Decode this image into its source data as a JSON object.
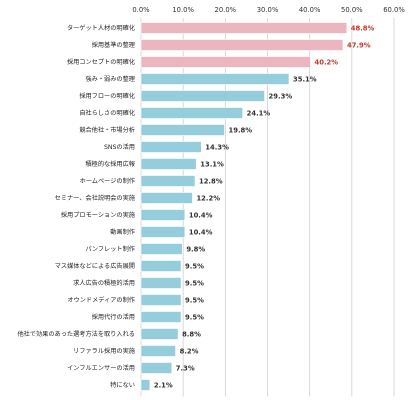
{
  "chart_data": {
    "type": "bar",
    "orientation": "horizontal",
    "title": "",
    "xlabel": "",
    "ylabel": "",
    "xlim": [
      0,
      60
    ],
    "x_tick_labels": [
      "0.0%",
      "10.0%",
      "20.0%",
      "30.0%",
      "40.0%",
      "50.0%",
      "60.0%"
    ],
    "x_ticks": [
      0,
      10,
      20,
      30,
      40,
      50,
      60
    ],
    "x_axis_position": "top",
    "grid": true,
    "legend": "none",
    "categories": [
      "ターゲット人材の明確化",
      "採用基準の整理",
      "採用コンセプトの明確化",
      "強み・弱みの整理",
      "採用フローの明確化",
      "自社らしさの明確化",
      "競合他社・市場分析",
      "SNSの活用",
      "積極的な採用広報",
      "ホームページの制作",
      "セミナー、会社説明会の実施",
      "採用プロモーションの実施",
      "動画制作",
      "パンフレット制作",
      "マス媒体などによる広告展開",
      "求人広告の積極的活用",
      "オウンドメディアの制作",
      "採用代行の活用",
      "他社で効果のあった選考方法を取り入れる",
      "リファラル採用の実施",
      "インフルエンサーの活用",
      "特にない"
    ],
    "values": [
      48.8,
      47.9,
      40.2,
      35.1,
      29.3,
      24.1,
      19.8,
      14.3,
      13.1,
      12.8,
      12.2,
      10.4,
      10.4,
      9.8,
      9.5,
      9.5,
      9.5,
      9.5,
      8.8,
      8.2,
      7.3,
      2.1
    ],
    "value_labels": [
      "48.8%",
      "47.9%",
      "40.2%",
      "35.1%",
      "29.3%",
      "24.1%",
      "19.8%",
      "14.3%",
      "13.1%",
      "12.8%",
      "12.2%",
      "10.4%",
      "10.4%",
      "9.8%",
      "9.5%",
      "9.5%",
      "9.5%",
      "9.5%",
      "8.8%",
      "8.2%",
      "7.3%",
      "2.1%"
    ],
    "highlight_count": 3,
    "colors": {
      "highlight_bar": "#EBB6BF",
      "normal_bar": "#95CDDD",
      "highlight_label": "#C0392B",
      "normal_label": "#333333",
      "grid": "#D0D0D0",
      "bar_stroke": "#FFFFFF"
    }
  }
}
